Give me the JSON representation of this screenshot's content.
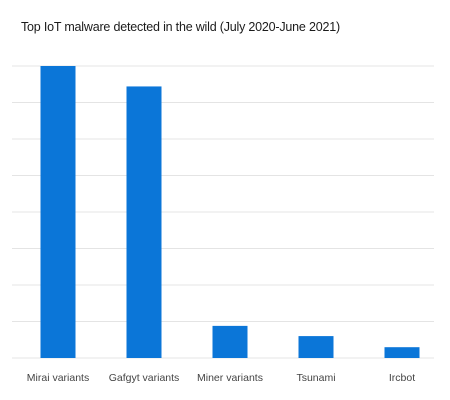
{
  "chart_data": {
    "type": "bar",
    "title": "Top IoT malware detected in the wild (July 2020-June 2021)",
    "categories": [
      "Mirai variants",
      "Gafgyt variants",
      "Miner variants",
      "Tsunami",
      "Ircbot"
    ],
    "values": [
      100,
      93,
      11,
      7.5,
      3.7
    ],
    "ylim": [
      0,
      100
    ],
    "grid": true,
    "bar_color": "#0b76d8",
    "grid_color": "#e4e4e4"
  }
}
